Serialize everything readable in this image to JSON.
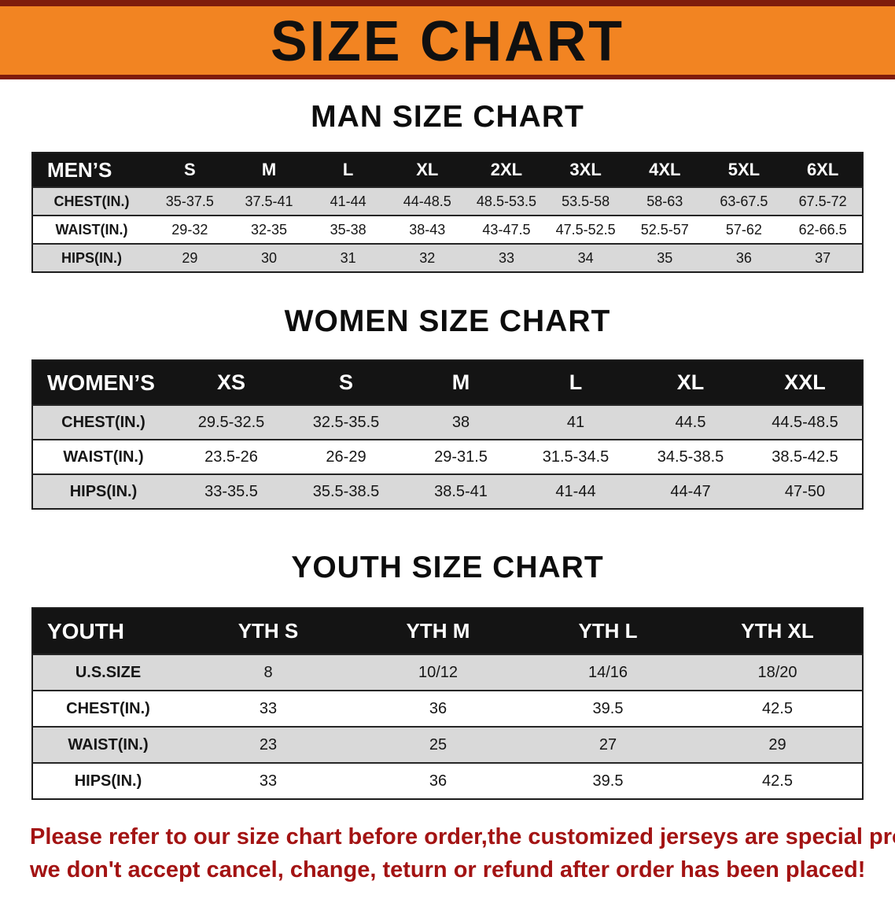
{
  "banner": {
    "title": "SIZE CHART"
  },
  "colors": {
    "banner_bg": "#f28422",
    "banner_edge": "#7f1c0c",
    "header_bg": "#141414",
    "row_stripe": "#d9d9d9",
    "disclaimer_text": "#a31313"
  },
  "sections": [
    {
      "id": "men",
      "heading": "MAN SIZE CHART",
      "table": {
        "header": [
          "MEN’S",
          "S",
          "M",
          "L",
          "XL",
          "2XL",
          "3XL",
          "4XL",
          "5XL",
          "6XL"
        ],
        "rows": [
          [
            "CHEST(IN.)",
            "35-37.5",
            "37.5-41",
            "41-44",
            "44-48.5",
            "48.5-53.5",
            "53.5-58",
            "58-63",
            "63-67.5",
            "67.5-72"
          ],
          [
            "WAIST(IN.)",
            "29-32",
            "32-35",
            "35-38",
            "38-43",
            "43-47.5",
            "47.5-52.5",
            "52.5-57",
            "57-62",
            "62-66.5"
          ],
          [
            "HIPS(IN.)",
            "29",
            "30",
            "31",
            "32",
            "33",
            "34",
            "35",
            "36",
            "37"
          ]
        ]
      }
    },
    {
      "id": "women",
      "heading": "WOMEN SIZE CHART",
      "table": {
        "header": [
          "WOMEN’S",
          "XS",
          "S",
          "M",
          "L",
          "XL",
          "XXL"
        ],
        "rows": [
          [
            "CHEST(IN.)",
            "29.5-32.5",
            "32.5-35.5",
            "38",
            "41",
            "44.5",
            "44.5-48.5"
          ],
          [
            "WAIST(IN.)",
            "23.5-26",
            "26-29",
            "29-31.5",
            "31.5-34.5",
            "34.5-38.5",
            "38.5-42.5"
          ],
          [
            "HIPS(IN.)",
            "33-35.5",
            "35.5-38.5",
            "38.5-41",
            "41-44",
            "44-47",
            "47-50"
          ]
        ]
      }
    },
    {
      "id": "youth",
      "heading": "YOUTH SIZE CHART",
      "table": {
        "header": [
          "YOUTH",
          "YTH S",
          "YTH M",
          "YTH L",
          "YTH XL"
        ],
        "rows": [
          [
            "U.S.SIZE",
            "8",
            "10/12",
            "14/16",
            "18/20"
          ],
          [
            "CHEST(IN.)",
            "33",
            "36",
            "39.5",
            "42.5"
          ],
          [
            "WAIST(IN.)",
            "23",
            "25",
            "27",
            "29"
          ],
          [
            "HIPS(IN.)",
            "33",
            "36",
            "39.5",
            "42.5"
          ]
        ]
      }
    }
  ],
  "disclaimer": {
    "line1": "Please refer to our size chart before order,the customized jerseys are special products,",
    "line2": "we don't accept cancel, change, teturn or refund after order has been placed!"
  }
}
